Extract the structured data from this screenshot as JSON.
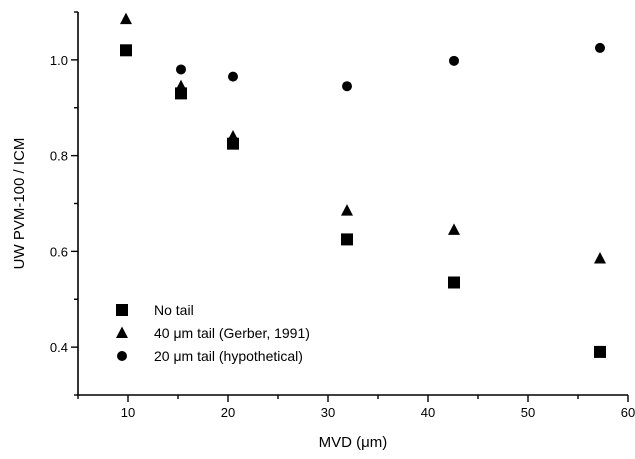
{
  "chart_data": {
    "type": "scatter",
    "title": "",
    "xlabel": "MVD (μm)",
    "ylabel": "UW PVM-100 / ICM",
    "xlim": [
      5,
      60
    ],
    "ylim": [
      0.3,
      1.1
    ],
    "x_ticks": [
      10,
      20,
      30,
      40,
      50,
      60
    ],
    "y_ticks": [
      0.4,
      0.6,
      0.8,
      1.0
    ],
    "x_tick_labels": [
      "10",
      "20",
      "30",
      "40",
      "50",
      "60"
    ],
    "y_tick_labels": [
      "0.4",
      "0.6",
      "0.8",
      "1.0"
    ],
    "grid": false,
    "legend_position": "bottom-left",
    "series": [
      {
        "name": "No tail",
        "marker": "square",
        "points": [
          [
            9.8,
            1.02
          ],
          [
            15.3,
            0.93
          ],
          [
            20.5,
            0.825
          ],
          [
            31.9,
            0.625
          ],
          [
            42.6,
            0.535
          ],
          [
            57.2,
            0.39
          ]
        ]
      },
      {
        "name": "40 μm tail (Gerber, 1991)",
        "marker": "triangle",
        "points": [
          [
            9.8,
            1.085
          ],
          [
            15.3,
            0.945
          ],
          [
            20.5,
            0.84
          ],
          [
            31.9,
            0.685
          ],
          [
            42.6,
            0.645
          ],
          [
            57.2,
            0.585
          ]
        ]
      },
      {
        "name": "20 μm tail (hypothetical)",
        "marker": "circle",
        "points": [
          [
            9.8,
            1.02
          ],
          [
            15.3,
            0.98
          ],
          [
            20.5,
            0.965
          ],
          [
            31.9,
            0.945
          ],
          [
            42.6,
            0.998
          ],
          [
            57.2,
            1.025
          ]
        ]
      }
    ]
  }
}
